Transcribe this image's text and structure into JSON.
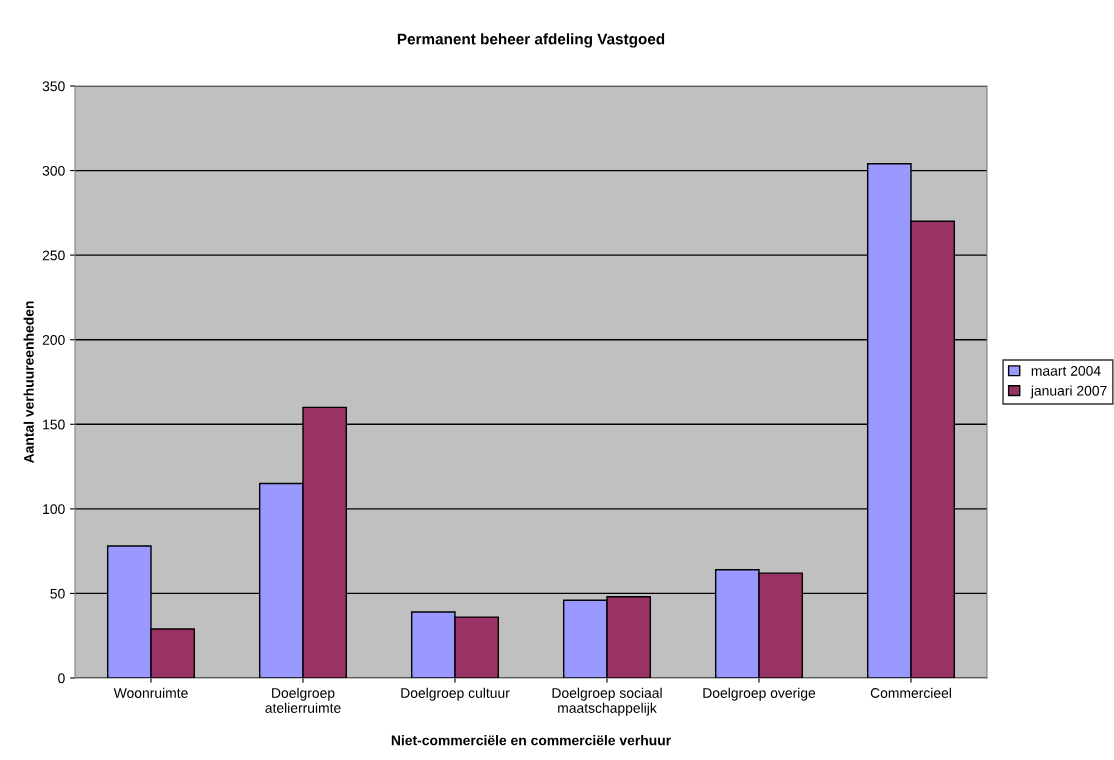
{
  "chart_data": {
    "type": "bar",
    "title": "Permanent beheer afdeling Vastgoed",
    "xlabel": "Niet-commerciële en commerciële verhuur",
    "ylabel": "Aantal verhuureenheden",
    "categories": [
      "Woonruimte",
      "Doelgroep\natelierruimte",
      "Doelgroep cultuur",
      "Doelgroep sociaal\nmaatschappelijk",
      "Doelgroep overige",
      "Commercieel"
    ],
    "series": [
      {
        "name": "maart 2004",
        "color": "#9999ff",
        "values": [
          78,
          115,
          39,
          46,
          64,
          304
        ]
      },
      {
        "name": "januari 2007",
        "color": "#993366",
        "values": [
          29,
          160,
          36,
          48,
          62,
          270
        ]
      }
    ],
    "ylim": [
      0,
      350
    ],
    "yticks": [
      0,
      50,
      100,
      150,
      200,
      250,
      300,
      350
    ],
    "grid": "y",
    "legend": "right"
  }
}
